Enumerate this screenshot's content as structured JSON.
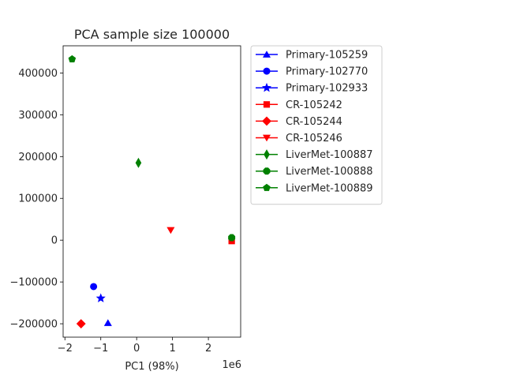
{
  "chart_data": {
    "type": "scatter",
    "title": "PCA sample size 100000",
    "xlabel": "PC1 (98%)",
    "ylabel": "",
    "x_offset_label": "1e6",
    "xlim": [
      -2.05,
      2.9
    ],
    "ylim": [
      -232000,
      465000
    ],
    "x_ticks": [
      -2,
      -1,
      0,
      1,
      2
    ],
    "x_tick_labels": [
      "−2",
      "−1",
      "0",
      "1",
      "2"
    ],
    "y_ticks": [
      -200000,
      -100000,
      0,
      100000,
      200000,
      300000,
      400000
    ],
    "y_tick_labels": [
      "−200000",
      "−100000",
      "0",
      "100000",
      "200000",
      "300000",
      "400000"
    ],
    "grid": false,
    "legend_position": "outside-right",
    "series": [
      {
        "name": "Primary-105259",
        "color": "#0000ff",
        "marker": "triangle-up",
        "x": -0.8,
        "y": -198000
      },
      {
        "name": "Primary-102770",
        "color": "#0000ff",
        "marker": "circle",
        "x": -1.2,
        "y": -111000
      },
      {
        "name": "Primary-102933",
        "color": "#0000ff",
        "marker": "star",
        "x": -1.0,
        "y": -139000
      },
      {
        "name": "CR-105242",
        "color": "#ff0000",
        "marker": "square",
        "x": 2.65,
        "y": -2000
      },
      {
        "name": "CR-105244",
        "color": "#ff0000",
        "marker": "diamond",
        "x": -1.55,
        "y": -200000
      },
      {
        "name": "CR-105246",
        "color": "#ff0000",
        "marker": "triangle-down",
        "x": 0.95,
        "y": 24000
      },
      {
        "name": "LiverMet-100887",
        "color": "#008000",
        "marker": "thin-diamond",
        "x": 0.05,
        "y": 185000
      },
      {
        "name": "LiverMet-100888",
        "color": "#008000",
        "marker": "octagon",
        "x": 2.65,
        "y": 6000
      },
      {
        "name": "LiverMet-100889",
        "color": "#008000",
        "marker": "pentagon",
        "x": -1.8,
        "y": 433000
      }
    ]
  }
}
